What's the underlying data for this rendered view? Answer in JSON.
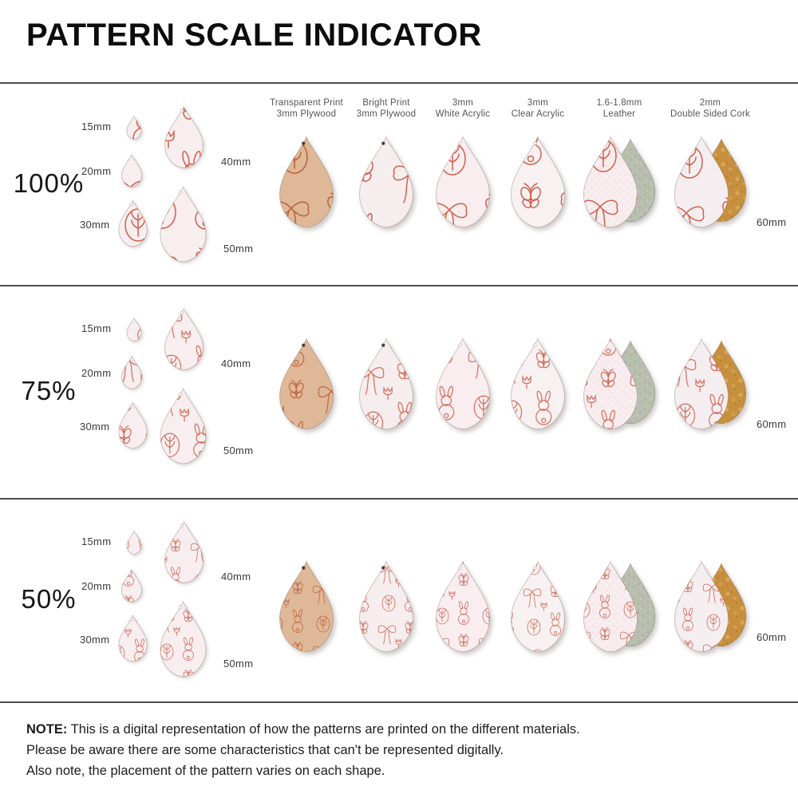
{
  "title": "PATTERN SCALE INDICATOR",
  "rows": [
    {
      "scale": "100%"
    },
    {
      "scale": "75%"
    },
    {
      "scale": "50%"
    }
  ],
  "size_labels": {
    "s15": "15mm",
    "s20": "20mm",
    "s30": "30mm",
    "s40": "40mm",
    "s50": "50mm",
    "s60": "60mm"
  },
  "materials": [
    {
      "line1": "Transparent Print",
      "line2": "3mm Plywood"
    },
    {
      "line1": "Bright Print",
      "line2": "3mm Plywood"
    },
    {
      "line1": "3mm",
      "line2": "White Acrylic"
    },
    {
      "line1": "3mm",
      "line2": "Clear Acrylic"
    },
    {
      "line1": "1.6-1.8mm",
      "line2": "Leather"
    },
    {
      "line1": "2mm",
      "line2": "Double Sided Cork"
    }
  ],
  "note": {
    "prefix": "NOTE:",
    "line1": "This is a digital representation of how the patterns are printed on the different materials.",
    "line2": "Please be aware there are some characteristics that can't be represented digitally.",
    "line3": "Also note, the placement of the pattern varies on each shape."
  },
  "colors": {
    "pattern_red": "#d0604a",
    "pattern_on_wood": "#ba5f3c",
    "plywood": "#dfb897",
    "print_white": "#f6edee",
    "white_acrylic": "#f9edf0",
    "clear_acrylic": "#f8f1f2",
    "leather_front": "#f7ebee",
    "leather_back": "#b9bfae",
    "cork_front": "#f5eef1",
    "cork_back": "#c7903e",
    "divider": "#4c4c4c"
  }
}
